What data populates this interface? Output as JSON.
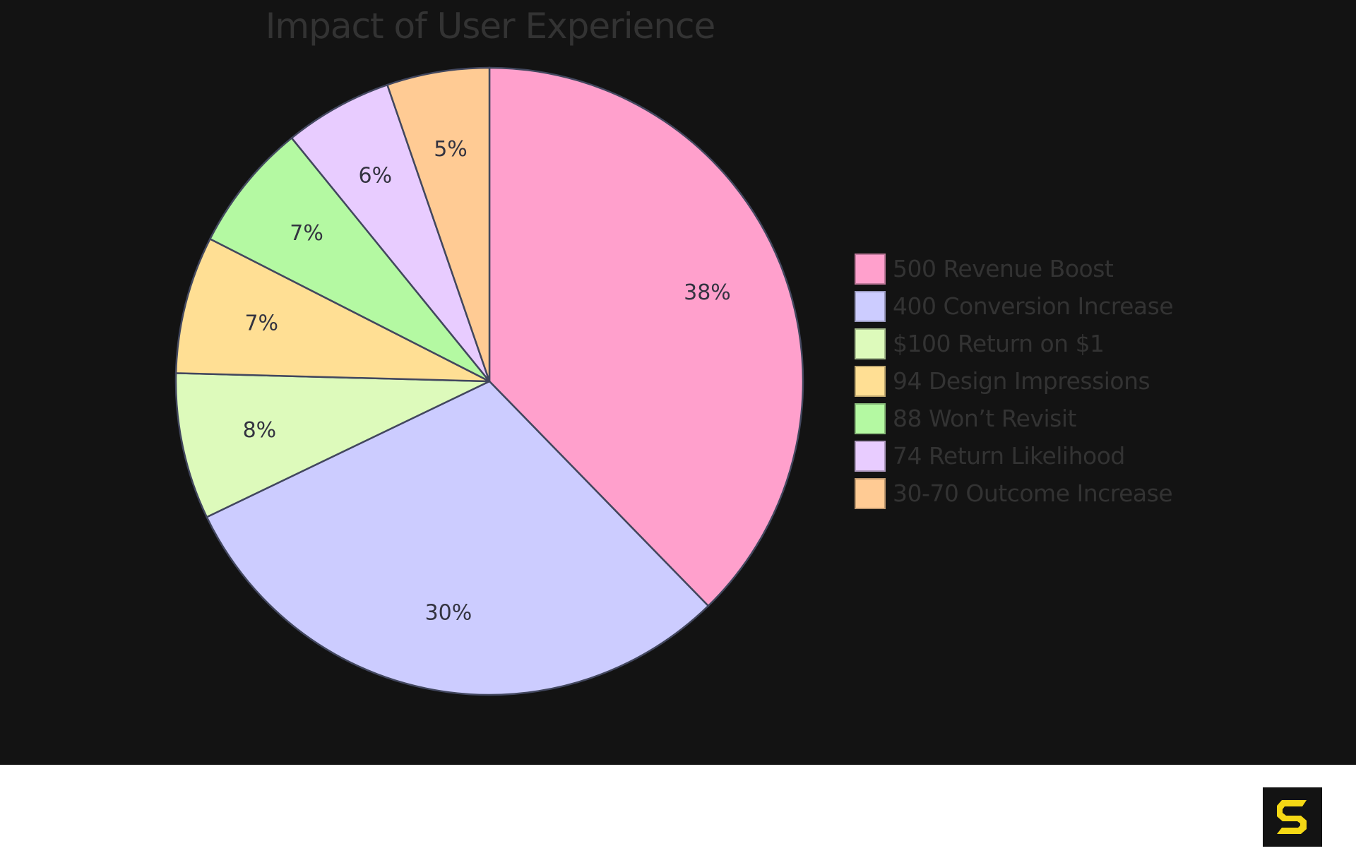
{
  "chart_data": {
    "type": "pie",
    "title": "Impact of User Experience",
    "categories": [
      "500 Revenue Boost",
      "400 Conversion Increase",
      "$100 Return on $1",
      "94 Design Impressions",
      "88 Won’t Revisit",
      "74 Return Likelihood",
      "30-70 Outcome Increase"
    ],
    "values": [
      500,
      400,
      100,
      94,
      88,
      74,
      70
    ],
    "percent_labels": [
      "38%",
      "30%",
      "8%",
      "7%",
      "7%",
      "6%",
      "5%"
    ],
    "colors": [
      "#ffa0cc",
      "#ccccff",
      "#ddfabb",
      "#ffdf94",
      "#b4f9a2",
      "#e8ccff",
      "#ffcb94"
    ],
    "start_angle_deg": 0,
    "direction": "clockwise",
    "legend_position": "right",
    "xlabel": "",
    "ylabel": ""
  },
  "theme": {
    "background": "#131313",
    "slice_stroke": "#42475e",
    "text_color": "#333333",
    "logo_accent": "#f5d815"
  },
  "footer": {
    "logo": "s-logo-icon"
  }
}
